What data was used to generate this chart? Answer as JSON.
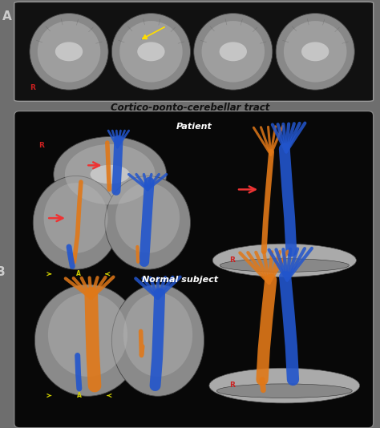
{
  "fig_width": 4.74,
  "fig_height": 5.34,
  "dpi": 100,
  "outer_bg": "#6e6e6e",
  "panel_a_bg": "#111111",
  "panel_b_bg": "#080808",
  "subtitle": "Cortico-ponto-cerebellar tract",
  "subtitle_color": "#111111",
  "subtitle_fontsize": 8.5,
  "patient_label": "Patient",
  "normal_label": "Normal subject",
  "label_color": "#ffffff",
  "label_fontsize": 8,
  "r_color": "#cc2020",
  "r_fontsize": 6.5,
  "arrow_red": "#ee3333",
  "arrow_yellow": "#cccc00",
  "blue": "#2255cc",
  "orange": "#e07818",
  "panel_a_border": "#999999",
  "panel_b_border": "#888888",
  "A_label_color": "#cccccc",
  "B_label_color": "#cccccc"
}
